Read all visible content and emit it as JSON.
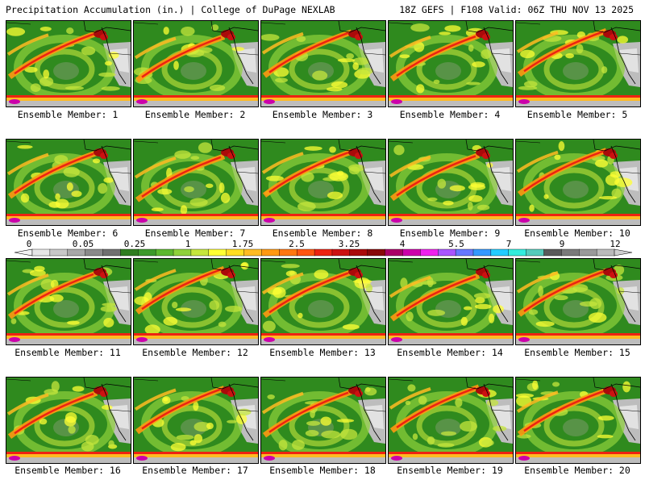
{
  "header": {
    "left_title": "Precipitation Accumulation (in.) | College of DuPage NEXLAB",
    "right_title": "18Z GEFS | F108 Valid: 06Z THU NOV 13 2025"
  },
  "panels": [
    {
      "label": "Ensemble Member: 1"
    },
    {
      "label": "Ensemble Member: 2"
    },
    {
      "label": "Ensemble Member: 3"
    },
    {
      "label": "Ensemble Member: 4"
    },
    {
      "label": "Ensemble Member: 5"
    },
    {
      "label": "Ensemble Member: 6"
    },
    {
      "label": "Ensemble Member: 7"
    },
    {
      "label": "Ensemble Member: 8"
    },
    {
      "label": "Ensemble Member: 9"
    },
    {
      "label": "Ensemble Member: 10"
    },
    {
      "label": "Ensemble Member: 11"
    },
    {
      "label": "Ensemble Member: 12"
    },
    {
      "label": "Ensemble Member: 13"
    },
    {
      "label": "Ensemble Member: 14"
    },
    {
      "label": "Ensemble Member: 15"
    },
    {
      "label": "Ensemble Member: 16"
    },
    {
      "label": "Ensemble Member: 17"
    },
    {
      "label": "Ensemble Member: 18"
    },
    {
      "label": "Ensemble Member: 19"
    },
    {
      "label": "Ensemble Member: 20"
    }
  ],
  "colorbar": {
    "tick_labels": [
      "0",
      "0.05",
      "0.25",
      "1",
      "1.75",
      "2.5",
      "3.25",
      "4",
      "5.5",
      "7",
      "9",
      "12"
    ],
    "colors": [
      "#e6e6e6",
      "#c8c8c8",
      "#a8a8a8",
      "#8a8a8a",
      "#707070",
      "#2f7d1f",
      "#3c9a2a",
      "#5cb82e",
      "#8fd13a",
      "#c6e63c",
      "#ffff33",
      "#ffdd22",
      "#ffbb22",
      "#ff9911",
      "#ff7711",
      "#ff5511",
      "#ee2211",
      "#cc1111",
      "#aa0a0a",
      "#880808",
      "#aa0066",
      "#cc00aa",
      "#ee22ee",
      "#aa55ff",
      "#6677ff",
      "#3399ff",
      "#22ccff",
      "#33eedd",
      "#55ccbb",
      "#5a5a5a",
      "#7a7a7a",
      "#9a9a9a",
      "#bbbbbb"
    ]
  }
}
